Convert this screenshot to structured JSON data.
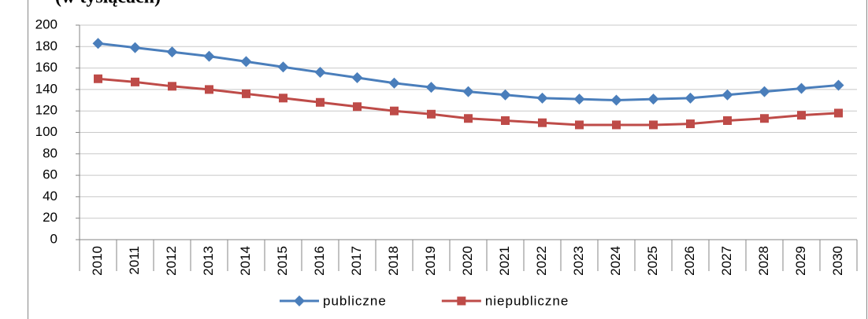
{
  "chart_data": {
    "type": "line",
    "subtitle": "(w tysiącach)",
    "categories": [
      "2010",
      "2011",
      "2012",
      "2013",
      "2014",
      "2015",
      "2016",
      "2017",
      "2018",
      "2019",
      "2020",
      "2021",
      "2022",
      "2023",
      "2024",
      "2025",
      "2026",
      "2027",
      "2028",
      "2029",
      "2030"
    ],
    "series": [
      {
        "name": "publiczne",
        "color": "#4a7ebb",
        "marker": "diamond",
        "values": [
          183,
          179,
          175,
          171,
          166,
          161,
          156,
          151,
          146,
          142,
          138,
          135,
          132,
          131,
          130,
          131,
          132,
          135,
          138,
          141,
          144
        ]
      },
      {
        "name": "niepubliczne",
        "color": "#be4b48",
        "marker": "square",
        "values": [
          150,
          147,
          143,
          140,
          136,
          132,
          128,
          124,
          120,
          117,
          113,
          111,
          109,
          107,
          107,
          107,
          108,
          111,
          113,
          116,
          118
        ]
      }
    ],
    "ylim": [
      0,
      200
    ],
    "yticks": [
      0,
      20,
      40,
      60,
      80,
      100,
      120,
      140,
      160,
      180,
      200
    ],
    "grid": true,
    "legend": "bottom"
  }
}
